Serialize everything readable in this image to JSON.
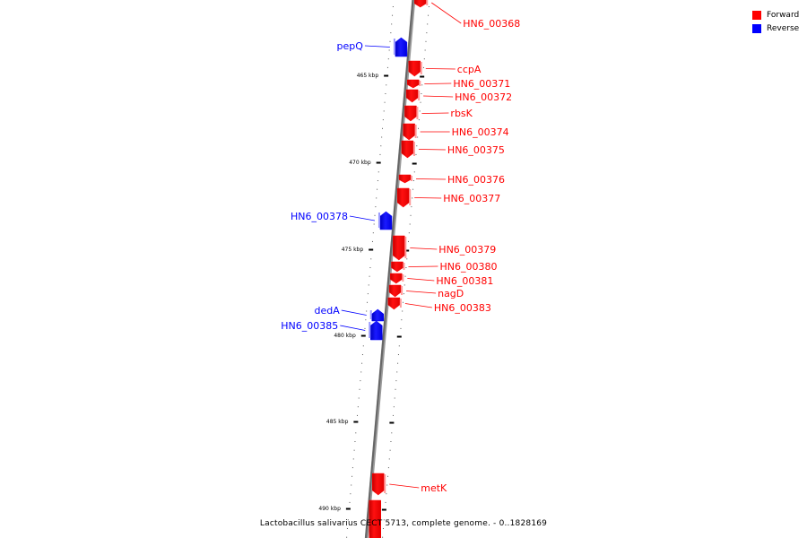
{
  "legend": {
    "forward_label": "Forward",
    "reverse_label": "Reverse",
    "forward_color": "#ff0000",
    "reverse_color": "#0000ff"
  },
  "caption": "Lactobacillus salivarius CECT 5713, complete genome. - 0..1828169",
  "scale_labels": [
    "465 kbp",
    "470 kbp",
    "475 kbp",
    "480 kbp",
    "485 kbp",
    "490 kbp"
  ],
  "genes": [
    {
      "name": "HN6_00368",
      "strand": "forward"
    },
    {
      "name": "pepQ",
      "strand": "reverse"
    },
    {
      "name": "ccpA",
      "strand": "forward"
    },
    {
      "name": "HN6_00371",
      "strand": "forward"
    },
    {
      "name": "HN6_00372",
      "strand": "forward"
    },
    {
      "name": "rbsK",
      "strand": "forward"
    },
    {
      "name": "HN6_00374",
      "strand": "forward"
    },
    {
      "name": "HN6_00375",
      "strand": "forward"
    },
    {
      "name": "HN6_00376",
      "strand": "forward"
    },
    {
      "name": "HN6_00377",
      "strand": "forward"
    },
    {
      "name": "HN6_00378",
      "strand": "reverse"
    },
    {
      "name": "HN6_00379",
      "strand": "forward"
    },
    {
      "name": "HN6_00380",
      "strand": "forward"
    },
    {
      "name": "HN6_00381",
      "strand": "forward"
    },
    {
      "name": "nagD",
      "strand": "forward"
    },
    {
      "name": "HN6_00383",
      "strand": "forward"
    },
    {
      "name": "dedA",
      "strand": "reverse"
    },
    {
      "name": "HN6_00385",
      "strand": "reverse"
    },
    {
      "name": "metK",
      "strand": "forward"
    }
  ]
}
